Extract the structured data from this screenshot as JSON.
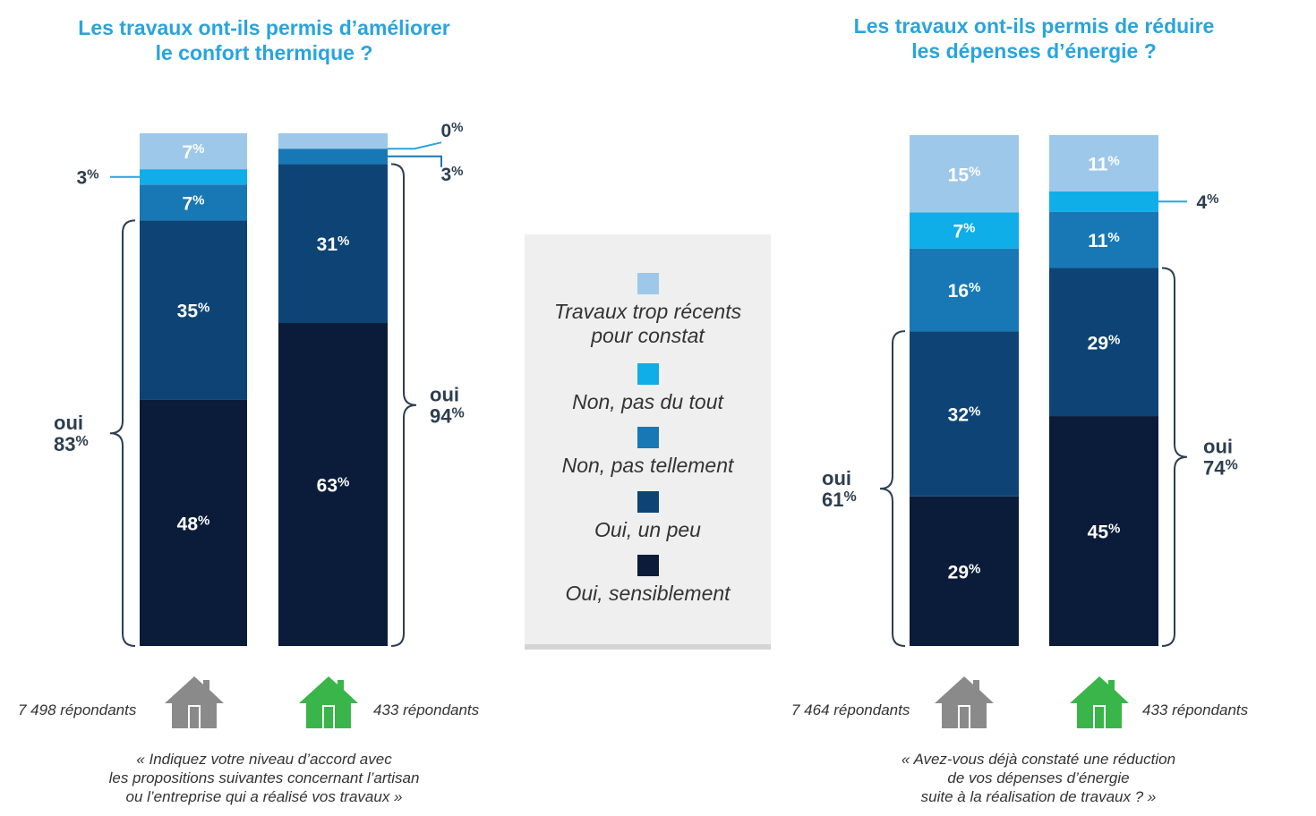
{
  "colors": {
    "trop_recents": "#9dc8ea",
    "pas_du_tout": "#0faee8",
    "pas_tellement": "#1778b5",
    "un_peu": "#0e4475",
    "sensiblement": "#0a1c3a",
    "title": "#2aa4dc",
    "house_grey": "#8a8a8a",
    "house_green": "#39b54a"
  },
  "legend": [
    {
      "label": "Travaux trop récents\npour constat",
      "color_key": "trop_recents"
    },
    {
      "label": "Non, pas du tout",
      "color_key": "pas_du_tout"
    },
    {
      "label": "Non, pas tellement",
      "color_key": "pas_tellement"
    },
    {
      "label": "Oui, un peu",
      "color_key": "un_peu"
    },
    {
      "label": "Oui, sensiblement",
      "color_key": "sensiblement"
    }
  ],
  "left": {
    "title": "Les travaux ont-ils permis d’améliorer\nle confort thermique ?",
    "respondents": [
      "7 498 répondants",
      "433 répondants"
    ],
    "question": "« Indiquez votre niveau d’accord avec\nles propositions suivantes concernant l’artisan\nou l’entreprise qui a réalisé vos travaux »",
    "oui": [
      {
        "word": "oui",
        "pct": "83",
        "sign": "%"
      },
      {
        "word": "oui",
        "pct": "94",
        "sign": "%"
      }
    ]
  },
  "right": {
    "title": "Les travaux ont-ils permis de réduire\nles dépenses d’énergie ?",
    "respondents": [
      "7 464 répondants",
      "433 répondants"
    ],
    "question": "« Avez-vous déjà constaté une réduction\nde vos dépenses d’énergie\nsuite à la réalisation de travaux ? »",
    "oui": [
      {
        "word": "oui",
        "pct": "61",
        "sign": "%"
      },
      {
        "word": "oui",
        "pct": "74",
        "sign": "%"
      }
    ]
  },
  "chart_data": [
    {
      "type": "bar",
      "stacked": true,
      "title": "Les travaux ont-ils permis d’améliorer le confort thermique ?",
      "categories": [
        "7 498 répondants",
        "433 répondants"
      ],
      "series": [
        {
          "name": "Oui, sensiblement",
          "values": [
            48,
            63
          ]
        },
        {
          "name": "Oui, un peu",
          "values": [
            35,
            31
          ]
        },
        {
          "name": "Non, pas tellement",
          "values": [
            7,
            3
          ]
        },
        {
          "name": "Non, pas du tout",
          "values": [
            3,
            0
          ]
        },
        {
          "name": "Travaux trop récents pour constat",
          "values": [
            7,
            3
          ]
        }
      ],
      "ylim": [
        0,
        100
      ]
    },
    {
      "type": "bar",
      "stacked": true,
      "title": "Les travaux ont-ils permis de réduire les dépenses d’énergie ?",
      "categories": [
        "7 464 répondants",
        "433 répondants"
      ],
      "series": [
        {
          "name": "Oui, sensiblement",
          "values": [
            29,
            45
          ]
        },
        {
          "name": "Oui, un peu",
          "values": [
            32,
            29
          ]
        },
        {
          "name": "Non, pas tellement",
          "values": [
            16,
            11
          ]
        },
        {
          "name": "Non, pas du tout",
          "values": [
            7,
            4
          ]
        },
        {
          "name": "Travaux trop récents pour constat",
          "values": [
            15,
            11
          ]
        }
      ],
      "ylim": [
        0,
        100
      ]
    }
  ]
}
